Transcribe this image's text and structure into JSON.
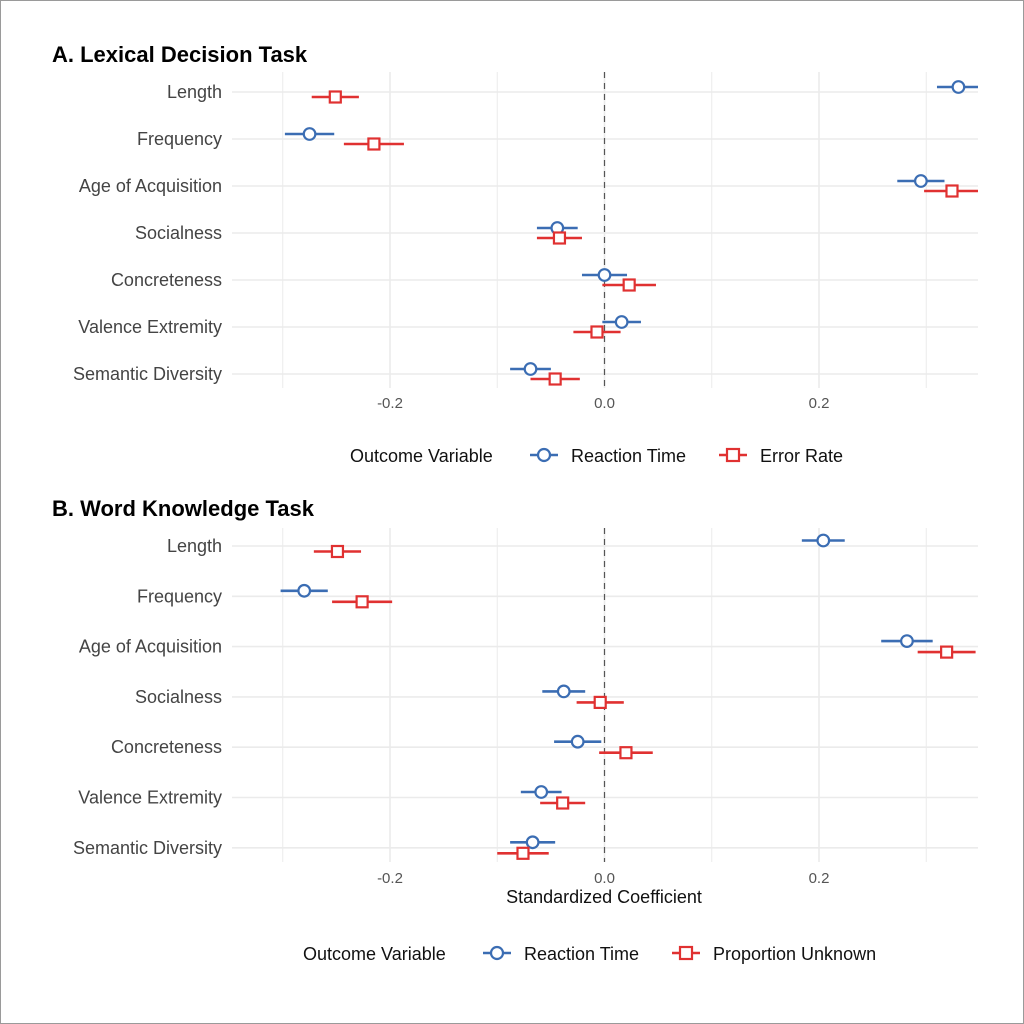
{
  "colors": {
    "rt": "#3b6db3",
    "err": "#e03131",
    "grid": "#ebebeb",
    "zero": "#555555"
  },
  "chart_data": [
    {
      "type": "scatter",
      "title": "A. Lexical Decision Task",
      "xlabel": "",
      "xlim": [
        -0.345,
        0.35
      ],
      "xticks": [
        -0.2,
        0.0,
        0.2
      ],
      "xtick_labels": [
        "-0.2",
        "0.0",
        "0.2"
      ],
      "categories": [
        "Length",
        "Frequency",
        "Age of Acquisition",
        "Socialness",
        "Concreteness",
        "Valence Extremity",
        "Semantic Diversity"
      ],
      "legend": {
        "title": "Outcome Variable",
        "position": "bottom"
      },
      "series": [
        {
          "name": "Reaction Time",
          "marker": "circle",
          "values": [
            0.33,
            -0.275,
            0.295,
            -0.044,
            0.0,
            0.016,
            -0.069
          ],
          "ci_low": [
            0.31,
            -0.298,
            0.273,
            -0.063,
            -0.021,
            -0.002,
            -0.088
          ],
          "ci_high": [
            0.35,
            -0.252,
            0.317,
            -0.025,
            0.021,
            0.034,
            -0.05
          ]
        },
        {
          "name": "Error Rate",
          "marker": "square",
          "values": [
            -0.251,
            -0.215,
            0.324,
            -0.042,
            0.023,
            -0.007,
            -0.046
          ],
          "ci_low": [
            -0.273,
            -0.243,
            0.298,
            -0.063,
            -0.002,
            -0.029,
            -0.069
          ],
          "ci_high": [
            -0.229,
            -0.187,
            0.35,
            -0.021,
            0.048,
            0.015,
            -0.023
          ]
        }
      ]
    },
    {
      "type": "scatter",
      "title": "B. Word Knowledge Task",
      "xlabel": "Standardized Coefficient",
      "xlim": [
        -0.345,
        0.35
      ],
      "xticks": [
        -0.2,
        0.0,
        0.2
      ],
      "xtick_labels": [
        "-0.2",
        "0.0",
        "0.2"
      ],
      "categories": [
        "Length",
        "Frequency",
        "Age of Acquisition",
        "Socialness",
        "Concreteness",
        "Valence Extremity",
        "Semantic Diversity"
      ],
      "legend": {
        "title": "Outcome Variable",
        "position": "bottom"
      },
      "series": [
        {
          "name": "Reaction Time",
          "marker": "circle",
          "values": [
            0.204,
            -0.28,
            0.282,
            -0.038,
            -0.025,
            -0.059,
            -0.067
          ],
          "ci_low": [
            0.184,
            -0.302,
            0.258,
            -0.058,
            -0.047,
            -0.078,
            -0.088
          ],
          "ci_high": [
            0.224,
            -0.258,
            0.306,
            -0.018,
            -0.003,
            -0.04,
            -0.046
          ]
        },
        {
          "name": "Proportion Unknown",
          "marker": "square",
          "values": [
            -0.249,
            -0.226,
            0.319,
            -0.004,
            0.02,
            -0.039,
            -0.076
          ],
          "ci_low": [
            -0.271,
            -0.254,
            0.292,
            -0.026,
            -0.005,
            -0.06,
            -0.1
          ],
          "ci_high": [
            -0.227,
            -0.198,
            0.346,
            0.018,
            0.045,
            -0.018,
            -0.052
          ]
        }
      ]
    }
  ]
}
